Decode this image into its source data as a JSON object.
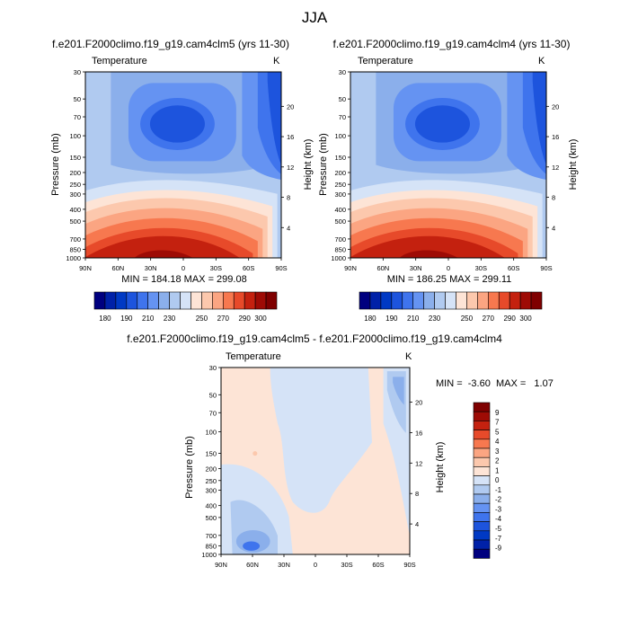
{
  "figure_title": "JJA",
  "colors": {
    "abs_scale": [
      "#00007f",
      "#0021a8",
      "#0039c4",
      "#1d54dd",
      "#3f74ed",
      "#6593f2",
      "#8bafeb",
      "#b0caf0",
      "#d5e3f7",
      "#fde4d6",
      "#fcc8ad",
      "#fba582",
      "#f7784f",
      "#e74a2a",
      "#c4210f",
      "#9e0b05",
      "#7f0000"
    ],
    "diff_scale": [
      "#00007f",
      "#0021a8",
      "#0039c4",
      "#1d54dd",
      "#3f74ed",
      "#6593f2",
      "#8bafeb",
      "#b0caf0",
      "#d5e3f7",
      "#fde4d6",
      "#fcc8ad",
      "#fba582",
      "#f7784f",
      "#e74a2a",
      "#c4210f",
      "#9e0b05",
      "#7f0000"
    ]
  },
  "chart_data": [
    {
      "type": "heatmap",
      "title": "f.e201.F2000climo.f19_g19.cam4clm5 (yrs 11-30)",
      "variable_label": "Temperature",
      "units": "K",
      "ylabel": "Pressure (mb)",
      "ylabel_right": "Height (km)",
      "x_ticks": [
        "90N",
        "60N",
        "30N",
        "0",
        "30S",
        "60S",
        "90S"
      ],
      "y_ticks": [
        "30",
        "50",
        "70",
        "100",
        "150",
        "200",
        "250",
        "300",
        "400",
        "500",
        "700",
        "850",
        "1000"
      ],
      "y_right_ticks": [
        "20",
        "16",
        "12",
        "8",
        "4"
      ],
      "stats": "MIN = 184.18   MAX = 299.08",
      "min": 184.18,
      "max": 299.08,
      "colorbar_labels": [
        "180",
        "190",
        "210",
        "230",
        "250",
        "270",
        "290",
        "300"
      ]
    },
    {
      "type": "heatmap",
      "title": "f.e201.F2000climo.f19_g19.cam4clm4 (yrs 11-30)",
      "variable_label": "Temperature",
      "units": "K",
      "ylabel": "Pressure (mb)",
      "ylabel_right": "Height (km)",
      "x_ticks": [
        "90N",
        "60N",
        "30N",
        "0",
        "30S",
        "60S",
        "90S"
      ],
      "y_ticks": [
        "30",
        "50",
        "70",
        "100",
        "150",
        "200",
        "250",
        "300",
        "400",
        "500",
        "700",
        "850",
        "1000"
      ],
      "y_right_ticks": [
        "20",
        "16",
        "12",
        "8",
        "4"
      ],
      "stats": "MIN = 186.25   MAX = 299.11",
      "min": 186.25,
      "max": 299.11,
      "colorbar_labels": [
        "180",
        "190",
        "210",
        "230",
        "250",
        "270",
        "290",
        "300"
      ]
    },
    {
      "type": "heatmap",
      "title": "f.e201.F2000climo.f19_g19.cam4clm5 - f.e201.F2000climo.f19_g19.cam4clm4",
      "variable_label": "Temperature",
      "units": "K",
      "ylabel": "Pressure (mb)",
      "ylabel_right": "Height (km)",
      "x_ticks": [
        "90N",
        "60N",
        "30N",
        "0",
        "30S",
        "60S",
        "90S"
      ],
      "y_ticks": [
        "30",
        "50",
        "70",
        "100",
        "150",
        "200",
        "250",
        "300",
        "400",
        "500",
        "700",
        "850",
        "1000"
      ],
      "y_right_ticks": [
        "20",
        "16",
        "12",
        "8",
        "4"
      ],
      "stats": "MIN =  -3.60  MAX =   1.07",
      "min": -3.6,
      "max": 1.07,
      "colorbar_labels": [
        "9",
        "7",
        "5",
        "4",
        "3",
        "2",
        "1",
        "0",
        "-1",
        "-2",
        "-3",
        "-4",
        "-5",
        "-7",
        "-9"
      ]
    }
  ]
}
